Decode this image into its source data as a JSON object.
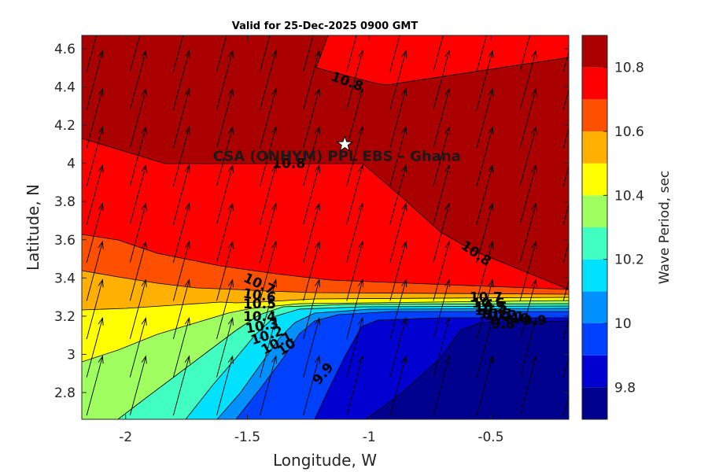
{
  "chart_data": {
    "type": "contour",
    "title": "Valid for 25-Dec-2025 0900 GMT",
    "xlabel": "Longitude, W",
    "ylabel": "Latitude, N",
    "xlim": [
      -2.18,
      -0.18
    ],
    "ylim": [
      2.66,
      4.67
    ],
    "x_ticks": [
      -2,
      -1.5,
      -1,
      -0.5
    ],
    "x_tick_labels": [
      "-2",
      "-1.5",
      "-1",
      "-0.5"
    ],
    "y_ticks": [
      2.8,
      3.0,
      3.2,
      3.4,
      3.6,
      3.8,
      4.0,
      4.2,
      4.4,
      4.6
    ],
    "y_tick_labels": [
      "2.8",
      "3",
      "3.2",
      "3.4",
      "3.6",
      "3.8",
      "4",
      "4.2",
      "4.4",
      "4.6"
    ],
    "colorbar": {
      "label": "Wave Period, sec",
      "range": [
        9.7,
        10.9
      ],
      "tick_values": [
        9.8,
        10.0,
        10.2,
        10.4,
        10.6,
        10.8
      ],
      "tick_labels": [
        "9.8",
        "10",
        "10.2",
        "10.4",
        "10.6",
        "10.8"
      ],
      "levels": [
        9.7,
        9.8,
        9.9,
        10.0,
        10.1,
        10.2,
        10.3,
        10.4,
        10.5,
        10.6,
        10.7,
        10.8,
        10.9
      ],
      "colors": [
        "#00008f",
        "#0000d0",
        "#0040ff",
        "#0090ff",
        "#00e0ff",
        "#40ffc0",
        "#a0ff60",
        "#ffff00",
        "#ffb000",
        "#ff5000",
        "#ff0000",
        "#aa0000"
      ]
    },
    "site": {
      "name": "CSA (ONHYM) PPL EBS  – Ghana",
      "lon": -1.1,
      "lat": 4.1
    },
    "contour_labels": [
      {
        "text": "10.8",
        "lon": -1.09,
        "lat": 4.43,
        "rot": 20
      },
      {
        "text": "10.8",
        "lon": -1.33,
        "lat": 4.0,
        "rot": 0
      },
      {
        "text": "10.8",
        "lon": -0.56,
        "lat": 3.53,
        "rot": 35
      },
      {
        "text": "10.7",
        "lon": -1.45,
        "lat": 3.37,
        "rot": 25
      },
      {
        "text": "10.6",
        "lon": -1.45,
        "lat": 3.31,
        "rot": 8
      },
      {
        "text": "10.5",
        "lon": -1.45,
        "lat": 3.265,
        "rot": 0
      },
      {
        "text": "10.4",
        "lon": -1.45,
        "lat": 3.2,
        "rot": 0
      },
      {
        "text": "10.3",
        "lon": -1.44,
        "lat": 3.15,
        "rot": -10
      },
      {
        "text": "10.2",
        "lon": -1.42,
        "lat": 3.1,
        "rot": -18
      },
      {
        "text": "10.1",
        "lon": -1.38,
        "lat": 3.06,
        "rot": -28
      },
      {
        "text": "10",
        "lon": -1.34,
        "lat": 3.04,
        "rot": -35
      },
      {
        "text": "9.9",
        "lon": -1.19,
        "lat": 2.9,
        "rot": -50
      },
      {
        "text": "10.7",
        "lon": -0.52,
        "lat": 3.3,
        "rot": 0
      },
      {
        "text": "10.6",
        "lon": -0.51,
        "lat": 3.27,
        "rot": 0
      },
      {
        "text": "10.5",
        "lon": -0.5,
        "lat": 3.25,
        "rot": 0
      },
      {
        "text": "10.4",
        "lon": -0.5,
        "lat": 3.23,
        "rot": 0
      },
      {
        "text": "10.3",
        "lon": -0.48,
        "lat": 3.215,
        "rot": 0
      },
      {
        "text": "10.2",
        "lon": -0.46,
        "lat": 3.205,
        "rot": 0
      },
      {
        "text": "10.1",
        "lon": -0.43,
        "lat": 3.2,
        "rot": 0
      },
      {
        "text": "10",
        "lon": -0.38,
        "lat": 3.19,
        "rot": 0
      },
      {
        "text": "9.9",
        "lon": -0.32,
        "lat": 3.18,
        "rot": 0
      },
      {
        "text": "9.8",
        "lon": -0.45,
        "lat": 3.16,
        "rot": 0
      }
    ],
    "wave_direction_arrows": {
      "direction_from_deg": 195,
      "description": "Swell arrows pointing roughly north-north-east across the domain"
    }
  }
}
